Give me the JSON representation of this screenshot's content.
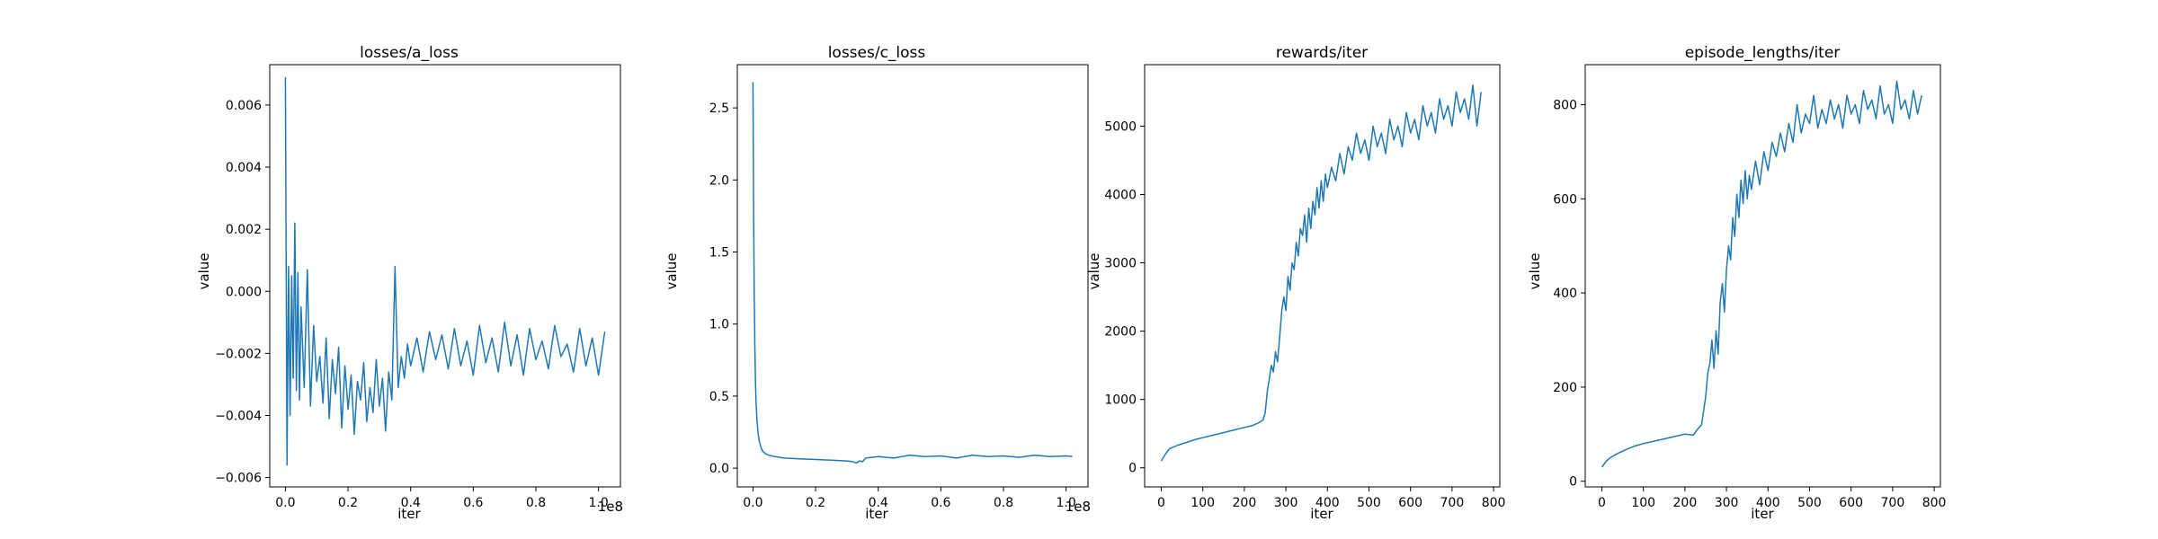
{
  "colors": {
    "series": "#1f77b4",
    "axes": "#000000",
    "background": "#ffffff"
  },
  "chart_data": [
    {
      "type": "line",
      "title": "losses/a_loss",
      "xlabel": "iter",
      "ylabel": "value",
      "x_offset_text": "1e8",
      "xlim": [
        -0.05,
        1.07
      ],
      "ylim": [
        -0.0063,
        0.0073
      ],
      "xticks": [
        0.0,
        0.2,
        0.4,
        0.6,
        0.8,
        1.0
      ],
      "xtick_labels": [
        "0.0",
        "0.2",
        "0.4",
        "0.6",
        "0.8",
        "1.0"
      ],
      "yticks": [
        -0.006,
        -0.004,
        -0.002,
        0.0,
        0.002,
        0.004,
        0.006
      ],
      "ytick_labels": [
        "−0.006",
        "−0.004",
        "−0.002",
        "0.000",
        "0.002",
        "0.004",
        "0.006"
      ],
      "grid": false,
      "series": [
        {
          "x": [
            0.0,
            0.005,
            0.01,
            0.015,
            0.02,
            0.025,
            0.03,
            0.035,
            0.04,
            0.045,
            0.05,
            0.06,
            0.07,
            0.08,
            0.09,
            0.1,
            0.11,
            0.12,
            0.13,
            0.14,
            0.15,
            0.16,
            0.17,
            0.18,
            0.19,
            0.2,
            0.21,
            0.22,
            0.23,
            0.24,
            0.25,
            0.26,
            0.27,
            0.28,
            0.29,
            0.3,
            0.31,
            0.32,
            0.33,
            0.34,
            0.35,
            0.36,
            0.37,
            0.38,
            0.39,
            0.4,
            0.42,
            0.44,
            0.46,
            0.48,
            0.5,
            0.52,
            0.54,
            0.56,
            0.58,
            0.6,
            0.62,
            0.64,
            0.66,
            0.68,
            0.7,
            0.72,
            0.74,
            0.76,
            0.78,
            0.8,
            0.82,
            0.84,
            0.86,
            0.88,
            0.9,
            0.92,
            0.94,
            0.96,
            0.98,
            1.0,
            1.02
          ],
          "values": [
            0.0069,
            -0.0056,
            0.0008,
            -0.004,
            0.0005,
            -0.0028,
            0.0022,
            -0.0032,
            0.0006,
            -0.0035,
            -0.0005,
            -0.0031,
            0.0007,
            -0.0037,
            -0.0011,
            -0.0029,
            -0.0021,
            -0.0036,
            -0.0015,
            -0.0041,
            -0.0022,
            -0.0033,
            -0.0018,
            -0.0044,
            -0.0024,
            -0.0038,
            -0.0027,
            -0.0046,
            -0.0029,
            -0.0035,
            -0.0023,
            -0.0042,
            -0.0031,
            -0.0039,
            -0.0022,
            -0.0037,
            -0.0028,
            -0.0045,
            -0.0026,
            -0.0035,
            0.0008,
            -0.0031,
            -0.0021,
            -0.0028,
            -0.0017,
            -0.0024,
            -0.0015,
            -0.0026,
            -0.0013,
            -0.0022,
            -0.0014,
            -0.0025,
            -0.0012,
            -0.0024,
            -0.0016,
            -0.0027,
            -0.0011,
            -0.0023,
            -0.0015,
            -0.0026,
            -0.001,
            -0.0024,
            -0.0014,
            -0.0027,
            -0.0012,
            -0.0022,
            -0.0016,
            -0.0025,
            -0.0011,
            -0.0021,
            -0.0017,
            -0.0026,
            -0.0012,
            -0.0024,
            -0.0015,
            -0.0027,
            -0.0013
          ]
        }
      ]
    },
    {
      "type": "line",
      "title": "losses/c_loss",
      "xlabel": "iter",
      "ylabel": "value",
      "x_offset_text": "1e8",
      "xlim": [
        -0.05,
        1.07
      ],
      "ylim": [
        -0.13,
        2.8
      ],
      "xticks": [
        0.0,
        0.2,
        0.4,
        0.6,
        0.8,
        1.0
      ],
      "xtick_labels": [
        "0.0",
        "0.2",
        "0.4",
        "0.6",
        "0.8",
        "1.0"
      ],
      "yticks": [
        0.0,
        0.5,
        1.0,
        1.5,
        2.0,
        2.5
      ],
      "ytick_labels": [
        "0.0",
        "0.5",
        "1.0",
        "1.5",
        "2.0",
        "2.5"
      ],
      "grid": false,
      "series": [
        {
          "x": [
            0.0,
            0.002,
            0.004,
            0.006,
            0.008,
            0.01,
            0.013,
            0.016,
            0.02,
            0.025,
            0.03,
            0.04,
            0.05,
            0.07,
            0.1,
            0.15,
            0.2,
            0.25,
            0.3,
            0.32,
            0.33,
            0.34,
            0.35,
            0.36,
            0.38,
            0.4,
            0.45,
            0.5,
            0.55,
            0.6,
            0.65,
            0.7,
            0.75,
            0.8,
            0.85,
            0.9,
            0.95,
            1.0,
            1.02
          ],
          "values": [
            2.68,
            1.8,
            1.2,
            0.85,
            0.6,
            0.45,
            0.33,
            0.25,
            0.19,
            0.15,
            0.12,
            0.1,
            0.09,
            0.08,
            0.07,
            0.065,
            0.06,
            0.055,
            0.05,
            0.045,
            0.035,
            0.05,
            0.045,
            0.07,
            0.075,
            0.08,
            0.07,
            0.09,
            0.08,
            0.085,
            0.07,
            0.09,
            0.08,
            0.085,
            0.075,
            0.09,
            0.08,
            0.085,
            0.08
          ]
        }
      ]
    },
    {
      "type": "line",
      "title": "rewards/iter",
      "xlabel": "iter",
      "ylabel": "value",
      "xlim": [
        -40,
        815
      ],
      "ylim": [
        -280,
        5900
      ],
      "xticks": [
        0,
        100,
        200,
        300,
        400,
        500,
        600,
        700,
        800
      ],
      "xtick_labels": [
        "0",
        "100",
        "200",
        "300",
        "400",
        "500",
        "600",
        "700",
        "800"
      ],
      "yticks": [
        0,
        1000,
        2000,
        3000,
        4000,
        5000
      ],
      "ytick_labels": [
        "0",
        "1000",
        "2000",
        "3000",
        "4000",
        "5000"
      ],
      "grid": false,
      "series": [
        {
          "x": [
            0,
            10,
            20,
            40,
            60,
            80,
            100,
            120,
            140,
            160,
            180,
            200,
            220,
            235,
            245,
            250,
            255,
            260,
            265,
            270,
            275,
            280,
            285,
            290,
            295,
            300,
            305,
            310,
            315,
            320,
            325,
            330,
            335,
            340,
            345,
            350,
            355,
            360,
            365,
            370,
            375,
            380,
            385,
            390,
            395,
            400,
            410,
            420,
            430,
            440,
            450,
            460,
            470,
            480,
            490,
            500,
            510,
            520,
            530,
            540,
            550,
            560,
            570,
            580,
            590,
            600,
            610,
            620,
            630,
            640,
            650,
            660,
            670,
            680,
            690,
            700,
            710,
            720,
            730,
            740,
            750,
            760,
            770
          ],
          "values": [
            100,
            200,
            280,
            330,
            370,
            410,
            440,
            470,
            500,
            530,
            560,
            590,
            620,
            660,
            700,
            800,
            1100,
            1300,
            1500,
            1400,
            1700,
            1550,
            1900,
            2300,
            2500,
            2300,
            2800,
            2600,
            3000,
            2900,
            3300,
            3100,
            3500,
            3400,
            3700,
            3300,
            3800,
            3500,
            3900,
            3700,
            4100,
            3800,
            4200,
            3900,
            4300,
            4100,
            4400,
            4200,
            4600,
            4300,
            4700,
            4500,
            4900,
            4600,
            4800,
            4500,
            5000,
            4700,
            4900,
            4600,
            5100,
            4800,
            5000,
            4700,
            5200,
            4900,
            5100,
            4800,
            5300,
            5000,
            5200,
            4900,
            5400,
            5100,
            5300,
            5000,
            5500,
            5200,
            5400,
            5100,
            5600,
            5000,
            5500
          ]
        }
      ]
    },
    {
      "type": "line",
      "title": "episode_lengths/iter",
      "xlabel": "iter",
      "ylabel": "value",
      "xlim": [
        -40,
        815
      ],
      "ylim": [
        -12,
        885
      ],
      "xticks": [
        0,
        100,
        200,
        300,
        400,
        500,
        600,
        700,
        800
      ],
      "xtick_labels": [
        "0",
        "100",
        "200",
        "300",
        "400",
        "500",
        "600",
        "700",
        "800"
      ],
      "yticks": [
        0,
        200,
        400,
        600,
        800
      ],
      "ytick_labels": [
        "0",
        "200",
        "400",
        "600",
        "800"
      ],
      "grid": false,
      "series": [
        {
          "x": [
            0,
            10,
            20,
            40,
            60,
            80,
            100,
            120,
            140,
            160,
            180,
            200,
            220,
            230,
            240,
            245,
            250,
            255,
            260,
            265,
            270,
            275,
            280,
            285,
            290,
            295,
            300,
            305,
            310,
            315,
            320,
            325,
            330,
            335,
            340,
            345,
            350,
            355,
            360,
            370,
            380,
            390,
            400,
            410,
            420,
            430,
            440,
            450,
            460,
            470,
            480,
            490,
            500,
            510,
            520,
            530,
            540,
            550,
            560,
            570,
            580,
            590,
            600,
            610,
            620,
            630,
            640,
            650,
            660,
            670,
            680,
            690,
            700,
            710,
            720,
            730,
            740,
            750,
            760,
            770
          ],
          "values": [
            30,
            42,
            50,
            60,
            68,
            75,
            80,
            84,
            88,
            92,
            96,
            100,
            98,
            110,
            120,
            150,
            180,
            230,
            250,
            300,
            240,
            320,
            270,
            380,
            420,
            360,
            450,
            500,
            470,
            560,
            520,
            610,
            560,
            640,
            590,
            660,
            600,
            650,
            620,
            680,
            630,
            700,
            660,
            720,
            690,
            740,
            700,
            760,
            720,
            800,
            740,
            780,
            760,
            820,
            750,
            790,
            760,
            810,
            770,
            800,
            750,
            820,
            780,
            800,
            760,
            830,
            790,
            810,
            770,
            840,
            780,
            800,
            760,
            850,
            790,
            810,
            770,
            830,
            780,
            820
          ]
        }
      ]
    }
  ]
}
